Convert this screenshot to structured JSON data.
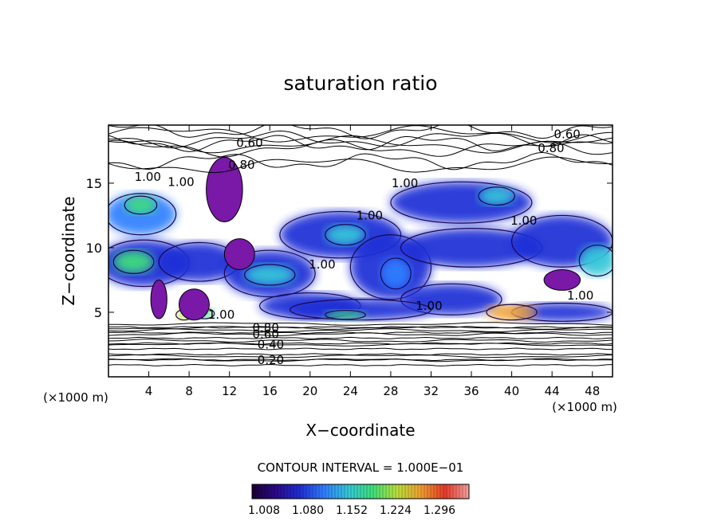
{
  "chart_data": {
    "type": "heatmap",
    "title": "saturation ratio",
    "xlabel": "X−coordinate",
    "ylabel": "Z−coordinate",
    "x_unit": "(×1000 m)",
    "z_unit": "(×1000 m)",
    "xlim": [
      0,
      50
    ],
    "ylim": [
      0,
      19.5
    ],
    "x_ticks": [
      4,
      8,
      12,
      16,
      20,
      24,
      28,
      32,
      36,
      40,
      44,
      48
    ],
    "y_ticks": [
      5,
      10,
      15
    ],
    "contour_interval_text": "CONTOUR INTERVAL = 1.000E−01",
    "colorbar": {
      "ticks": [
        "1.008",
        "1.080",
        "1.152",
        "1.224",
        "1.296"
      ],
      "colors": [
        "#1a0033",
        "#2a0a8c",
        "#1f2fd6",
        "#2f7fff",
        "#34c8d8",
        "#3ee07a",
        "#b8e03c",
        "#f0a030",
        "#e83a2a",
        "#f2a0a0"
      ]
    },
    "contour_labels": [
      {
        "text": "0.60",
        "x": 45.5,
        "z": 18.8
      },
      {
        "text": "0.80",
        "x": 43.9,
        "z": 17.7
      },
      {
        "text": "0.60",
        "x": 14.0,
        "z": 18.1
      },
      {
        "text": "0.80",
        "x": 13.2,
        "z": 16.4
      },
      {
        "text": "1.00",
        "x": 3.9,
        "z": 15.5
      },
      {
        "text": "1.00",
        "x": 7.2,
        "z": 15.1
      },
      {
        "text": "1.00",
        "x": 29.4,
        "z": 15.0
      },
      {
        "text": "1.00",
        "x": 25.9,
        "z": 12.5
      },
      {
        "text": "1.00",
        "x": 41.2,
        "z": 12.1
      },
      {
        "text": "1.00",
        "x": 21.2,
        "z": 8.7
      },
      {
        "text": "1.00",
        "x": 31.8,
        "z": 5.5
      },
      {
        "text": "1.00",
        "x": 46.8,
        "z": 6.3
      },
      {
        "text": "1.00",
        "x": 11.2,
        "z": 4.8
      },
      {
        "text": "0.80",
        "x": 15.6,
        "z": 3.8
      },
      {
        "text": "0.60",
        "x": 15.6,
        "z": 3.3
      },
      {
        "text": "0.40",
        "x": 16.1,
        "z": 2.5
      },
      {
        "text": "0.20",
        "x": 16.1,
        "z": 1.3
      }
    ],
    "regions": [
      {
        "level": 0.35,
        "x": 3.2,
        "z": 12.6,
        "rx": 3.5,
        "rz": 1.6
      },
      {
        "level": 0.55,
        "x": 3.2,
        "z": 13.3,
        "rx": 1.6,
        "rz": 0.7
      },
      {
        "level": 0.25,
        "x": 3.5,
        "z": 8.8,
        "rx": 4.5,
        "rz": 1.8
      },
      {
        "level": 0.5,
        "x": 2.5,
        "z": 8.9,
        "rx": 2.0,
        "rz": 0.9
      },
      {
        "level": 0.2,
        "x": 9.0,
        "z": 8.9,
        "rx": 4.0,
        "rz": 1.5
      },
      {
        "level": 0.2,
        "x": 16.0,
        "z": 8.0,
        "rx": 4.5,
        "rz": 1.8
      },
      {
        "level": 0.45,
        "x": 16.0,
        "z": 7.9,
        "rx": 2.5,
        "rz": 0.8
      },
      {
        "level": 0.2,
        "x": 23.0,
        "z": 11.0,
        "rx": 6.0,
        "rz": 1.8
      },
      {
        "level": 0.4,
        "x": 23.5,
        "z": 11.0,
        "rx": 2.0,
        "rz": 0.8
      },
      {
        "level": 0.2,
        "x": 28.0,
        "z": 8.5,
        "rx": 4.0,
        "rz": 2.5
      },
      {
        "level": 0.35,
        "x": 28.5,
        "z": 8.0,
        "rx": 1.5,
        "rz": 1.2
      },
      {
        "level": 0.2,
        "x": 35.0,
        "z": 13.5,
        "rx": 7.0,
        "rz": 1.6
      },
      {
        "level": 0.45,
        "x": 38.5,
        "z": 14.0,
        "rx": 1.8,
        "rz": 0.7
      },
      {
        "level": 0.2,
        "x": 36.0,
        "z": 10.0,
        "rx": 7.0,
        "rz": 1.5
      },
      {
        "level": 0.2,
        "x": 45.0,
        "z": 10.5,
        "rx": 5.0,
        "rz": 2.0
      },
      {
        "level": 0.45,
        "x": 48.5,
        "z": 9.0,
        "rx": 1.8,
        "rz": 1.2
      },
      {
        "level": 0.2,
        "x": 20.0,
        "z": 5.5,
        "rx": 5.0,
        "rz": 1.0
      },
      {
        "level": 0.2,
        "x": 34.0,
        "z": 6.0,
        "rx": 5.0,
        "rz": 1.2
      },
      {
        "level": 0.2,
        "x": 25.0,
        "z": 5.2,
        "rx": 7.0,
        "rz": 0.8
      },
      {
        "level": 0.2,
        "x": 45.0,
        "z": 5.0,
        "rx": 5.0,
        "rz": 0.7
      },
      {
        "level": 0.6,
        "x": 23.5,
        "z": 4.8,
        "rx": 2.0,
        "rz": 0.35
      },
      {
        "level": 0.75,
        "x": 40.0,
        "z": 5.0,
        "rx": 2.5,
        "rz": 0.6
      },
      {
        "level": 0.7,
        "x": 7.5,
        "z": 4.8,
        "rx": 0.8,
        "rz": 0.4
      },
      {
        "level": 0.6,
        "x": 9.5,
        "z": 4.9,
        "rx": 1.0,
        "rz": 0.4
      }
    ],
    "purple_patches": [
      {
        "x": 11.5,
        "z": 14.5,
        "rx": 1.8,
        "rz": 2.5
      },
      {
        "x": 13.0,
        "z": 9.5,
        "rx": 1.5,
        "rz": 1.2
      },
      {
        "x": 5.0,
        "z": 6.0,
        "rx": 0.8,
        "rz": 1.5
      },
      {
        "x": 8.5,
        "z": 5.6,
        "rx": 1.5,
        "rz": 1.2
      },
      {
        "x": 45.0,
        "z": 7.5,
        "rx": 1.8,
        "rz": 0.8
      }
    ]
  }
}
